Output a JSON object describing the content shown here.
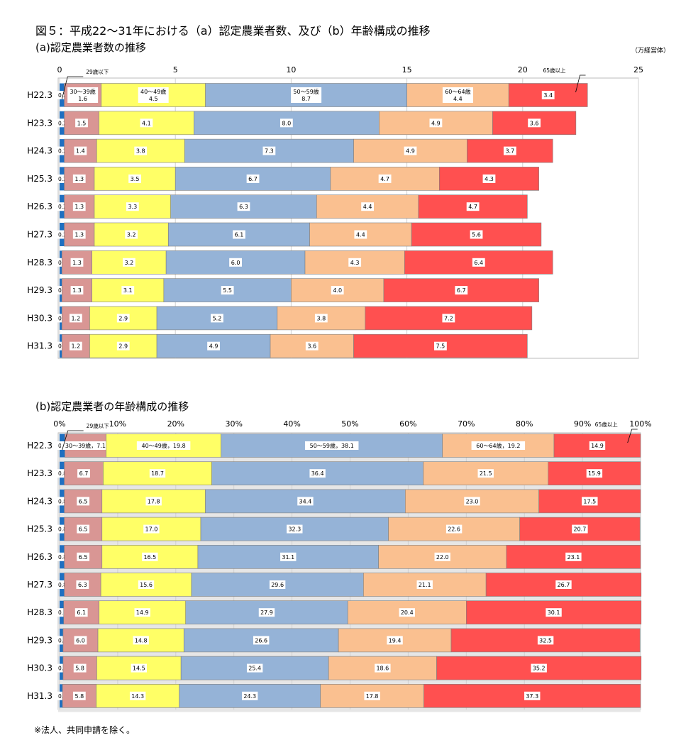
{
  "title": "図５：平成22～31年における（a）認定農業者数、及び（b）年齢構成の推移",
  "note": "※法人、共同申請を除く。",
  "colors": {
    "29歳以下": "#1f6fc0",
    "30～39歳": "#d99694",
    "40～49歳": "#ffff66",
    "50～59歳": "#95b3d7",
    "60～64歳": "#fac090",
    "65歳以上": "#ff5050"
  },
  "chart_data": [
    {
      "type": "bar",
      "orientation": "horizontal",
      "stacked": true,
      "title": "(a)認定農業者数の推移",
      "unit": "（万経営体）",
      "xlim": [
        0,
        25
      ],
      "xticks": [
        "0",
        "5",
        "10",
        "15",
        "20",
        "25"
      ],
      "grid": true,
      "categories": [
        "H22.3",
        "H23.3",
        "H24.3",
        "H25.3",
        "H26.3",
        "H27.3",
        "H28.3",
        "H29.3",
        "H30.3",
        "H31.3"
      ],
      "series": [
        {
          "name": "29歳以下",
          "values": [
            0.2,
            0.2,
            0.2,
            0.2,
            0.2,
            0.2,
            0.1,
            0.1,
            0.1,
            0.1
          ]
        },
        {
          "name": "30～39歳",
          "values": [
            1.6,
            1.5,
            1.4,
            1.3,
            1.3,
            1.3,
            1.3,
            1.3,
            1.2,
            1.2
          ]
        },
        {
          "name": "40～49歳",
          "values": [
            4.5,
            4.1,
            3.8,
            3.5,
            3.3,
            3.2,
            3.2,
            3.1,
            2.9,
            2.9
          ]
        },
        {
          "name": "50～59歳",
          "values": [
            8.7,
            8.0,
            7.3,
            6.7,
            6.3,
            6.1,
            6.0,
            5.5,
            5.2,
            4.9
          ]
        },
        {
          "name": "60～64歳",
          "values": [
            4.4,
            4.9,
            4.9,
            4.7,
            4.4,
            4.4,
            4.3,
            4.0,
            3.8,
            3.6
          ]
        },
        {
          "name": "65歳以上",
          "values": [
            3.4,
            3.6,
            3.7,
            4.3,
            4.7,
            5.6,
            6.4,
            6.7,
            7.2,
            7.5
          ]
        }
      ],
      "labels": [
        [
          "0.2",
          "30～39歳|1.6",
          "40～49歳|4.5",
          "50～59歳|8.7",
          "60～64歳|4.4",
          "3.4"
        ],
        [
          "0.2",
          "1.5",
          "4.1",
          "8.0",
          "4.9",
          "3.6"
        ],
        [
          "0.2",
          "1.4",
          "3.8",
          "7.3",
          "4.9",
          "3.7"
        ],
        [
          "0.2",
          "1.3",
          "3.5",
          "6.7",
          "4.7",
          "4.3"
        ],
        [
          "0.2",
          "1.3",
          "3.3",
          "6.3",
          "4.4",
          "4.7"
        ],
        [
          "0.2",
          "1.3",
          "3.2",
          "6.1",
          "4.4",
          "5.6"
        ],
        [
          "0.1",
          "1.3",
          "3.2",
          "6.0",
          "4.3",
          "6.4"
        ],
        [
          "0.1",
          "1.3",
          "3.1",
          "5.5",
          "4.0",
          "6.7"
        ],
        [
          "0.1",
          "1.2",
          "2.9",
          "5.2",
          "3.8",
          "7.2"
        ],
        [
          "0.1",
          "1.2",
          "2.9",
          "4.9",
          "3.6",
          "7.5"
        ]
      ],
      "callouts": [
        "29歳以下",
        "65歳以上"
      ]
    },
    {
      "type": "bar",
      "orientation": "horizontal",
      "stacked": true,
      "title": "(b)認定農業者の年齢構成の推移",
      "xlim": [
        0,
        100
      ],
      "xticks": [
        "0%",
        "10%",
        "20%",
        "30%",
        "40%",
        "50%",
        "60%",
        "70%",
        "80%",
        "90%",
        "100%"
      ],
      "grid": true,
      "categories": [
        "H22.3",
        "H23.3",
        "H24.3",
        "H25.3",
        "H26.3",
        "H27.3",
        "H28.3",
        "H29.3",
        "H30.3",
        "H31.3"
      ],
      "series": [
        {
          "name": "29歳以下",
          "values": [
            0.9,
            0.8,
            0.8,
            0.8,
            0.8,
            0.8,
            0.7,
            0.6,
            0.6,
            0.5
          ]
        },
        {
          "name": "30～39歳",
          "values": [
            7.1,
            6.7,
            6.5,
            6.5,
            6.5,
            6.3,
            6.1,
            6.0,
            5.8,
            5.8
          ]
        },
        {
          "name": "40～49歳",
          "values": [
            19.8,
            18.7,
            17.8,
            17.0,
            16.5,
            15.6,
            14.9,
            14.8,
            14.5,
            14.3
          ]
        },
        {
          "name": "50～59歳",
          "values": [
            38.1,
            36.4,
            34.4,
            32.3,
            31.1,
            29.6,
            27.9,
            26.6,
            25.4,
            24.3
          ]
        },
        {
          "name": "60～64歳",
          "values": [
            19.2,
            21.5,
            23.0,
            22.6,
            22.0,
            21.1,
            20.4,
            19.4,
            18.6,
            17.8
          ]
        },
        {
          "name": "65歳以上",
          "values": [
            14.9,
            15.9,
            17.5,
            20.7,
            23.1,
            26.7,
            30.1,
            32.5,
            35.2,
            37.3
          ]
        }
      ],
      "labels": [
        [
          "0.9",
          "30～39歳，7.1",
          "40～49歳，19.8",
          "50～59歳，38.1",
          "60～64歳，19.2",
          "14.9"
        ],
        [
          "0.8",
          "6.7",
          "18.7",
          "36.4",
          "21.5",
          "15.9"
        ],
        [
          "0.8",
          "6.5",
          "17.8",
          "34.4",
          "23.0",
          "17.5"
        ],
        [
          "0.8",
          "6.5",
          "17.0",
          "32.3",
          "22.6",
          "20.7"
        ],
        [
          "0.8",
          "6.5",
          "16.5",
          "31.1",
          "22.0",
          "23.1"
        ],
        [
          "0.8",
          "6.3",
          "15.6",
          "29.6",
          "21.1",
          "26.7"
        ],
        [
          "0.7",
          "6.1",
          "14.9",
          "27.9",
          "20.4",
          "30.1"
        ],
        [
          "0.6",
          "6.0",
          "14.8",
          "26.6",
          "19.4",
          "32.5"
        ],
        [
          "0.6",
          "5.8",
          "14.5",
          "25.4",
          "18.6",
          "35.2"
        ],
        [
          "0.5",
          "5.8",
          "14.3",
          "24.3",
          "17.8",
          "37.3"
        ]
      ],
      "callouts": [
        "29歳以下",
        "65歳以上"
      ]
    }
  ]
}
